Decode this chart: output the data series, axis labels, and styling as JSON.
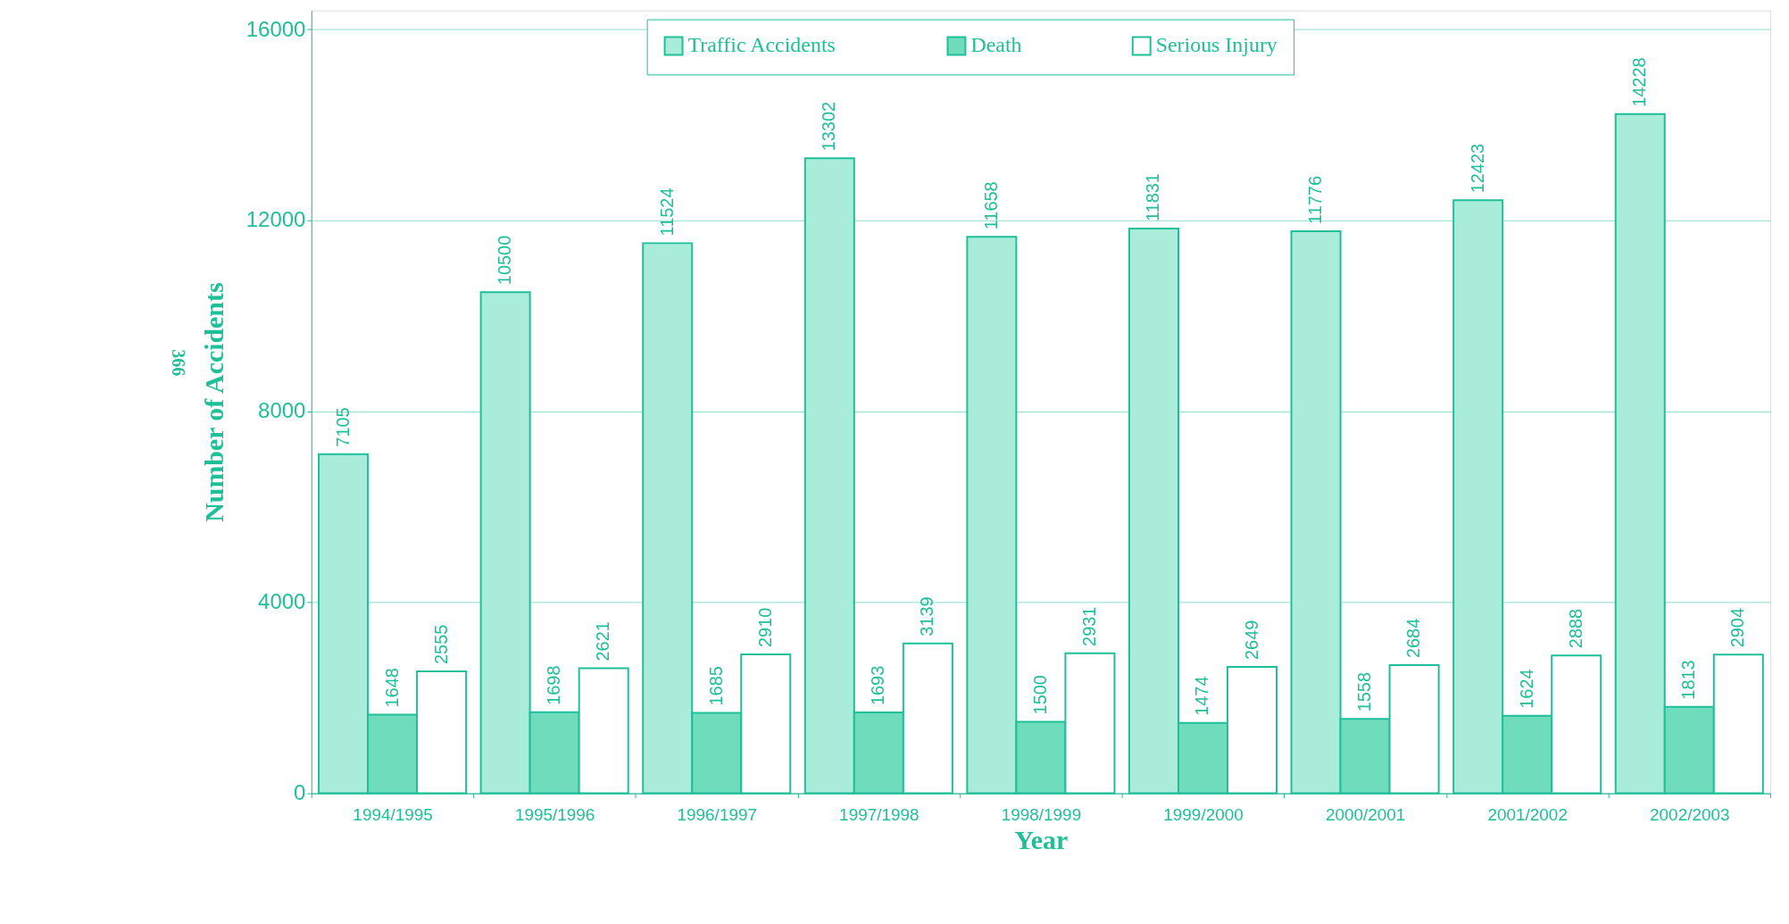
{
  "chart_data": {
    "type": "bar",
    "xlabel": "Year",
    "ylabel": "Number of Accidents",
    "categories": [
      "1994/1995",
      "1995/1996",
      "1996/1997",
      "1997/1998",
      "1998/1999",
      "1999/2000",
      "2000/2001",
      "2001/2002",
      "2002/2003"
    ],
    "series": [
      {
        "name": "Traffic Accidents",
        "color": "#a8ecd9",
        "values": [
          7105,
          10500,
          11524,
          13302,
          11658,
          11831,
          11776,
          12423,
          14228
        ]
      },
      {
        "name": "Death",
        "color": "#6fdcbc",
        "values": [
          1648,
          1698,
          1685,
          1693,
          1500,
          1474,
          1558,
          1624,
          1813
        ]
      },
      {
        "name": "Serious Injury",
        "color": "#ffffff",
        "values": [
          2555,
          2621,
          2910,
          3139,
          2931,
          2649,
          2684,
          2888,
          2904
        ]
      }
    ],
    "ylim": [
      0,
      16400
    ],
    "yticks": [
      0,
      4000,
      8000,
      12000,
      16000
    ],
    "grid": "y",
    "legend": "top",
    "data_labels": true,
    "annotations": [
      "366"
    ]
  }
}
